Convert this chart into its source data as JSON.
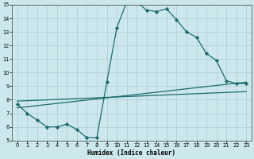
{
  "background_color": "#cde8ed",
  "grid_color": "#b0cfd6",
  "line_color": "#1a6b6b",
  "xlabel": "Humidex (Indice chaleur)",
  "xlim": [
    -0.5,
    23.5
  ],
  "ylim": [
    5,
    15
  ],
  "xticks": [
    0,
    1,
    2,
    3,
    4,
    5,
    6,
    7,
    8,
    9,
    10,
    11,
    12,
    13,
    14,
    15,
    16,
    17,
    18,
    19,
    20,
    21,
    22,
    23
  ],
  "yticks": [
    5,
    6,
    7,
    8,
    9,
    10,
    11,
    12,
    13,
    14,
    15
  ],
  "line1_x": [
    0,
    1,
    2,
    3,
    4,
    5,
    6,
    7,
    8,
    9,
    10,
    11,
    12,
    13,
    14,
    15,
    16,
    17,
    18,
    19,
    20,
    21,
    22,
    23
  ],
  "line1_y": [
    7.7,
    7.0,
    6.5,
    6.0,
    6.0,
    6.2,
    5.8,
    5.2,
    5.2,
    9.3,
    13.3,
    15.2,
    15.2,
    14.6,
    14.5,
    14.7,
    13.9,
    13.0,
    12.6,
    11.4,
    10.9,
    9.4,
    9.2,
    9.2
  ],
  "line2_x": [
    0,
    23
  ],
  "line2_y": [
    7.4,
    9.3
  ],
  "line3_x": [
    0,
    23
  ],
  "line3_y": [
    7.9,
    8.6
  ],
  "marker": "D",
  "markersize": 2.2,
  "linewidth": 0.9,
  "tick_labelsize": 4.8,
  "xlabel_fontsize": 5.5
}
